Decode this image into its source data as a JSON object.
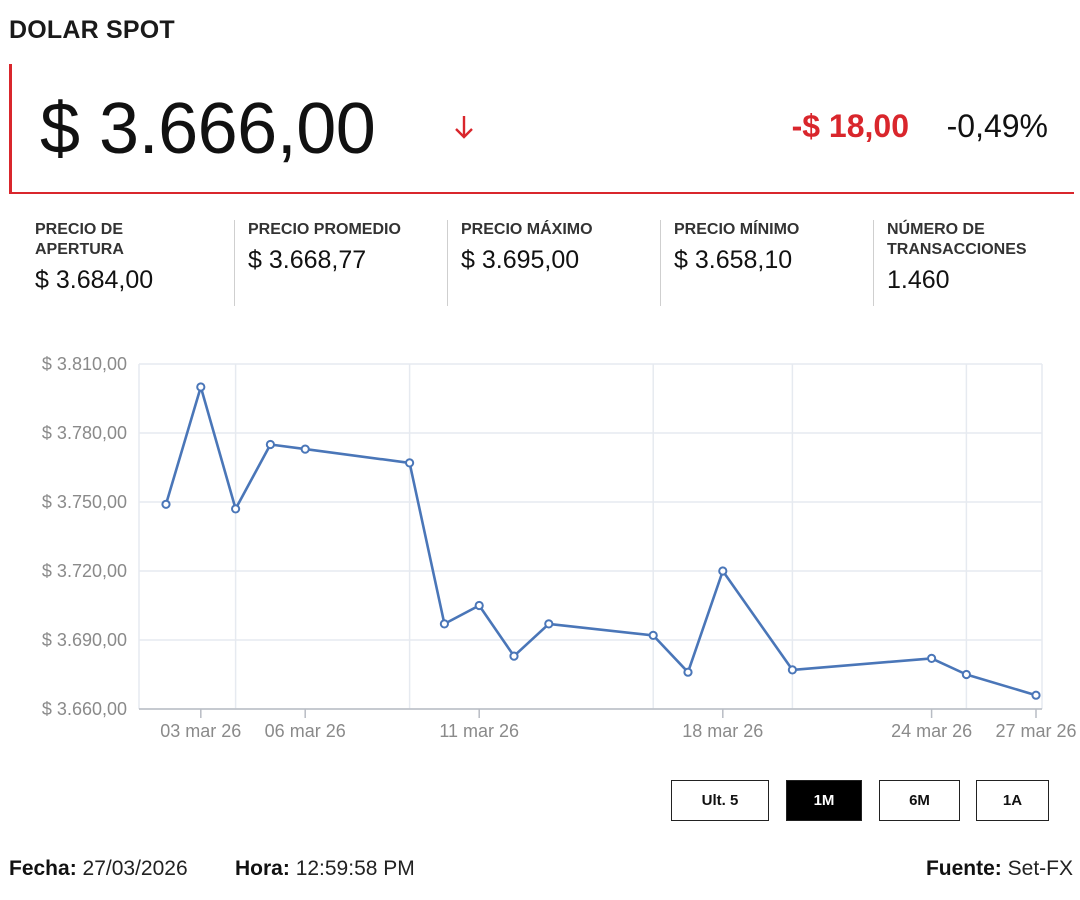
{
  "header": {
    "title": "DOLAR SPOT"
  },
  "quote": {
    "price": "$ 3.666,00",
    "direction_icon": "arrow-down-icon",
    "change_abs": "-$ 18,00",
    "change_pct": "-0,49%",
    "accent_color": "#d9262c"
  },
  "stats": [
    {
      "label": "PRECIO DE APERTURA",
      "value": "$ 3.684,00"
    },
    {
      "label": "PRECIO PROMEDIO",
      "value": "$ 3.668,77"
    },
    {
      "label": "PRECIO MÁXIMO",
      "value": "$ 3.695,00"
    },
    {
      "label": "PRECIO MÍNIMO",
      "value": "$ 3.658,10"
    },
    {
      "label": "NÚMERO DE TRANSACCIONES",
      "value": "1.460"
    }
  ],
  "chart_data": {
    "type": "line",
    "series_color": "#4a76b8",
    "grid": true,
    "ylim": [
      3660,
      3810
    ],
    "y_ticks": [
      3660,
      3690,
      3720,
      3750,
      3780,
      3810
    ],
    "y_tick_labels": [
      "$ 3.660,00",
      "$ 3.690,00",
      "$ 3.720,00",
      "$ 3.750,00",
      "$ 3.780,00",
      "$ 3.810,00"
    ],
    "x_ticks": [
      "2026-03-03",
      "2026-03-06",
      "2026-03-11",
      "2026-03-18",
      "2026-03-24",
      "2026-03-27"
    ],
    "x_tick_labels": [
      "03 mar 26",
      "06 mar 26",
      "11 mar 26",
      "18 mar 26",
      "24 mar 26",
      "27 mar 26"
    ],
    "x_grid_lines": [
      "2026-03-04",
      "2026-03-09",
      "2026-03-16",
      "2026-03-20",
      "2026-03-25"
    ],
    "points": [
      {
        "x": "2026-03-02",
        "y": 3749
      },
      {
        "x": "2026-03-03",
        "y": 3800
      },
      {
        "x": "2026-03-04",
        "y": 3747
      },
      {
        "x": "2026-03-05",
        "y": 3775
      },
      {
        "x": "2026-03-06",
        "y": 3773
      },
      {
        "x": "2026-03-09",
        "y": 3767
      },
      {
        "x": "2026-03-10",
        "y": 3697
      },
      {
        "x": "2026-03-11",
        "y": 3705
      },
      {
        "x": "2026-03-12",
        "y": 3683
      },
      {
        "x": "2026-03-13",
        "y": 3697
      },
      {
        "x": "2026-03-16",
        "y": 3692
      },
      {
        "x": "2026-03-17",
        "y": 3676
      },
      {
        "x": "2026-03-18",
        "y": 3720
      },
      {
        "x": "2026-03-20",
        "y": 3677
      },
      {
        "x": "2026-03-24",
        "y": 3682
      },
      {
        "x": "2026-03-25",
        "y": 3675
      },
      {
        "x": "2026-03-27",
        "y": 3666
      }
    ]
  },
  "range_buttons": [
    {
      "label": "Ult. 5",
      "active": false
    },
    {
      "label": "1M",
      "active": true
    },
    {
      "label": "6M",
      "active": false
    },
    {
      "label": "1A",
      "active": false
    }
  ],
  "footer": {
    "fecha_label": "Fecha:",
    "fecha_value": "27/03/2026",
    "hora_label": "Hora:",
    "hora_value": "12:59:58 PM",
    "fuente_label": "Fuente:",
    "fuente_value": "Set-FX"
  }
}
